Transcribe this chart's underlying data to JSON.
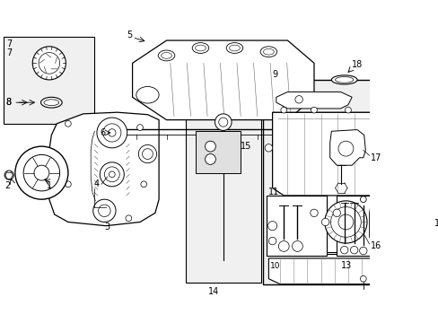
{
  "background_color": "#ffffff",
  "figsize": [
    4.89,
    3.6
  ],
  "dpi": 100
}
